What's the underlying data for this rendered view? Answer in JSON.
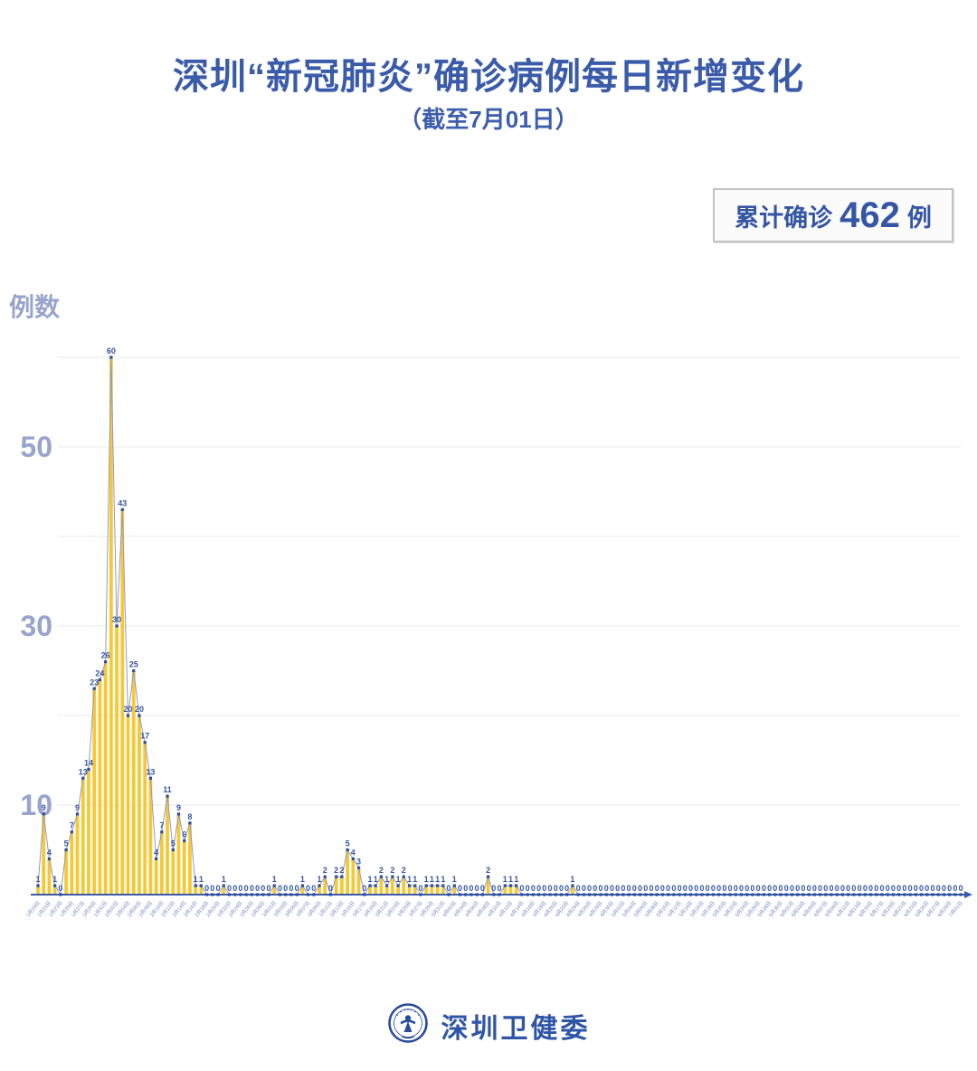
{
  "header": {
    "title": "深圳“新冠肺炎”确诊病例每日新增变化",
    "subtitle": "（截至7月01日）"
  },
  "badge": {
    "prefix": "累计确诊",
    "value": "462",
    "suffix": "例"
  },
  "footer": {
    "org": "深圳卫健委",
    "logo_icon": "shenzhen-health-commission-emblem"
  },
  "colors": {
    "title_blue": "#3a5ba9",
    "axis_label_blue": "#98a4cd",
    "bar_yellow": "#f8c832",
    "line_blue": "#8c9ac9",
    "marker_blue": "#2e4c9e",
    "value_label_blue": "#3356a5",
    "date_label_blue": "#6b80be",
    "gridline_gray": "#e9e9e9",
    "axis_blue": "#3a5ba9"
  },
  "chart_data": {
    "type": "bar",
    "title": "深圳“新冠肺炎”确诊病例每日新增变化",
    "subtitle": "（截至7月01日）",
    "xlabel": "",
    "ylabel": "例数",
    "ylim": [
      0,
      60
    ],
    "ytick_labels": [
      10,
      30,
      50
    ],
    "gridlines": [
      10,
      20,
      30,
      40,
      50,
      60
    ],
    "grid": true,
    "legend_position": "none",
    "x_start": "1月19日",
    "x_end": "7月01日",
    "x_label_interval_days": 2,
    "x_tick_labels": [
      "1月19日",
      "1月21日",
      "1月23日",
      "1月25日",
      "1月27日",
      "1月29日",
      "1月31日",
      "2月02日",
      "2月04日",
      "2月06日",
      "2月08日",
      "2月10日",
      "2月12日",
      "2月14日",
      "2月16日",
      "2月18日",
      "2月20日",
      "2月22日",
      "2月24日",
      "2月26日",
      "2月28日",
      "3月01日",
      "3月03日",
      "3月05日",
      "3月07日",
      "3月09日",
      "3月11日",
      "3月13日",
      "3月15日",
      "3月17日",
      "3月19日",
      "3月21日",
      "3月23日",
      "3月25日",
      "3月27日",
      "3月29日",
      "3月31日",
      "4月02日",
      "4月04日",
      "4月06日",
      "4月08日",
      "4月10日",
      "4月12日",
      "4月14日",
      "4月16日",
      "4月18日",
      "4月20日",
      "4月22日",
      "4月24日",
      "4月26日",
      "4月28日",
      "4月30日",
      "5月02日",
      "5月04日",
      "5月06日",
      "5月08日",
      "5月10日",
      "5月12日",
      "5月14日",
      "5月16日",
      "5月18日",
      "5月20日",
      "5月22日",
      "5月24日",
      "5月26日",
      "5月28日",
      "5月30日",
      "6月01日",
      "6月03日",
      "6月05日",
      "6月07日",
      "6月09日",
      "6月11日",
      "6月13日",
      "6月15日",
      "6月17日",
      "6月19日",
      "6月21日",
      "6月23日",
      "6月25日",
      "6月27日",
      "6月29日",
      "7月01日"
    ],
    "values": [
      1,
      9,
      4,
      1,
      0,
      5,
      7,
      9,
      13,
      14,
      23,
      24,
      26,
      60,
      30,
      43,
      20,
      25,
      20,
      17,
      13,
      4,
      7,
      11,
      5,
      9,
      6,
      8,
      1,
      1,
      0,
      0,
      0,
      1,
      0,
      0,
      0,
      0,
      0,
      0,
      0,
      0,
      1,
      0,
      0,
      0,
      0,
      1,
      0,
      0,
      1,
      2,
      0,
      2,
      2,
      5,
      4,
      3,
      0,
      1,
      1,
      2,
      1,
      2,
      1,
      2,
      1,
      1,
      0,
      1,
      1,
      1,
      1,
      0,
      1,
      0,
      0,
      0,
      0,
      0,
      2,
      0,
      0,
      1,
      1,
      1,
      0,
      0,
      0,
      0,
      0,
      0,
      0,
      0,
      0,
      1,
      0,
      0,
      0,
      0,
      0,
      0,
      0,
      0,
      0,
      0,
      0,
      0,
      0,
      0,
      0,
      0,
      0,
      0,
      0,
      0,
      0,
      0,
      0,
      0,
      0,
      0,
      0,
      0,
      0,
      0,
      0,
      0,
      0,
      0,
      0,
      0,
      0,
      0,
      0,
      0,
      0,
      0,
      0,
      0,
      0,
      0,
      0,
      0,
      0,
      0,
      0,
      0,
      0,
      0,
      0,
      0,
      0,
      0,
      0,
      0,
      0,
      0,
      0,
      0,
      0,
      0,
      0,
      0,
      0
    ]
  }
}
